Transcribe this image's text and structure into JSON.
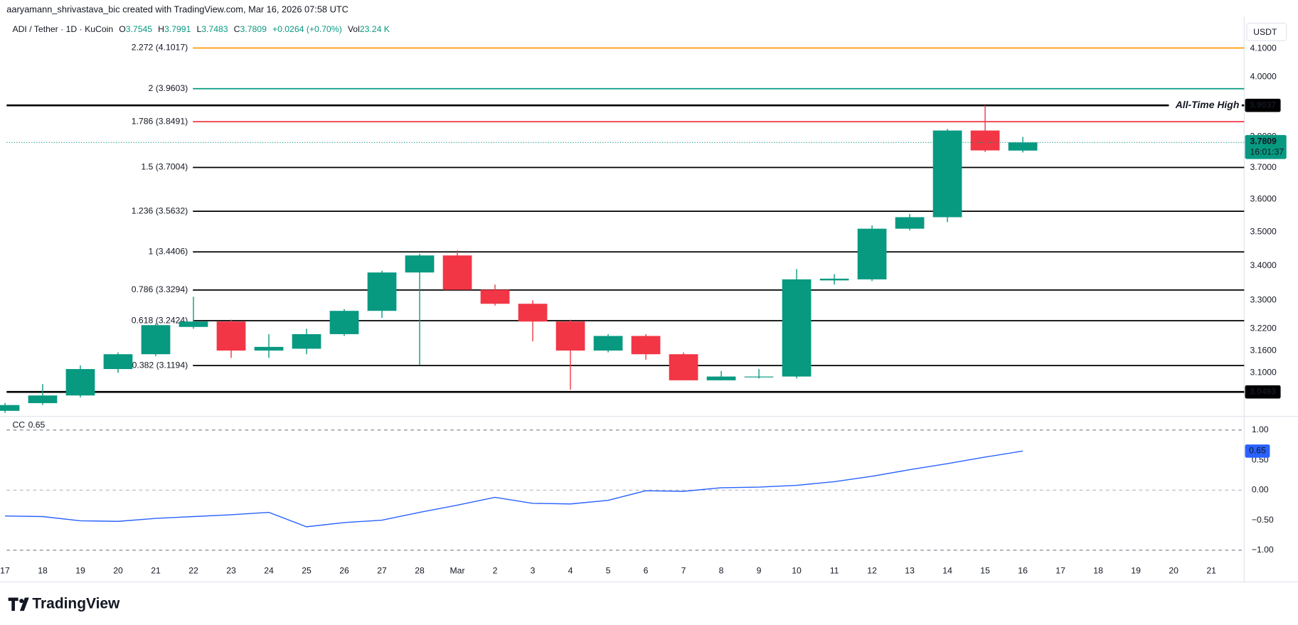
{
  "header": {
    "attribution": "aaryamann_shrivastava_bic created with TradingView.com, Mar 16, 2026 07:58 UTC"
  },
  "legend": {
    "symbol": "ADI / Tether · 1D · KuCoin",
    "open_label": "O",
    "open": 3.7545,
    "high_label": "H",
    "high": 3.7991,
    "low_label": "L",
    "low": 3.7483,
    "close_label": "C",
    "close": 3.7809,
    "change": "+0.0264 (+0.70%)",
    "volume_label": "Vol",
    "volume": "23.24 K"
  },
  "footer": {
    "brand": "TradingView"
  },
  "chart_data": [
    {
      "type": "candlestick",
      "currency": "USDT",
      "log": true,
      "grid": false,
      "up_color": "#089981",
      "down_color": "#f23645",
      "categories": [
        "17",
        "18",
        "19",
        "20",
        "21",
        "22",
        "23",
        "24",
        "25",
        "26",
        "27",
        "28",
        "Mar",
        "2",
        "3",
        "4",
        "5",
        "6",
        "7",
        "8",
        "9",
        "10",
        "11",
        "12",
        "13",
        "14",
        "15",
        "16",
        "17",
        "18",
        "19",
        "20",
        "21"
      ],
      "open": [
        3.0,
        3.02,
        3.04,
        3.11,
        3.15,
        3.225,
        3.24,
        3.16,
        3.165,
        3.205,
        3.27,
        3.38,
        3.43,
        3.33,
        3.29,
        3.24,
        3.16,
        3.2,
        3.15,
        3.08,
        3.088,
        3.09,
        3.357,
        3.36,
        3.51,
        3.545,
        3.82,
        3.7545,
        null,
        null,
        null,
        null,
        null
      ],
      "high": [
        3.02,
        3.07,
        3.12,
        3.155,
        3.235,
        3.31,
        3.245,
        3.205,
        3.22,
        3.275,
        3.385,
        3.435,
        3.445,
        3.345,
        3.3,
        3.245,
        3.205,
        3.205,
        3.155,
        3.105,
        3.11,
        3.39,
        3.375,
        3.52,
        3.555,
        3.825,
        3.9037,
        3.7991,
        null,
        null,
        null,
        null,
        null
      ],
      "low": [
        2.995,
        3.015,
        3.035,
        3.1,
        3.145,
        3.22,
        3.14,
        3.14,
        3.15,
        3.2,
        3.25,
        3.12,
        3.33,
        3.285,
        3.185,
        3.055,
        3.155,
        3.135,
        3.08,
        3.08,
        3.085,
        3.085,
        3.345,
        3.355,
        3.505,
        3.53,
        3.75,
        3.7483,
        null,
        null,
        null,
        null,
        null
      ],
      "close": [
        3.015,
        3.04,
        3.11,
        3.15,
        3.23,
        3.24,
        3.16,
        3.17,
        3.205,
        3.27,
        3.38,
        3.43,
        3.33,
        3.29,
        3.24,
        3.16,
        3.2,
        3.15,
        3.08,
        3.09,
        3.09,
        3.36,
        3.362,
        3.51,
        3.545,
        3.82,
        3.755,
        3.7809,
        null,
        null,
        null,
        null,
        null
      ],
      "countdown": "16:01:37",
      "ylim": [
        2.99,
        4.19
      ],
      "yticks": [
        {
          "value": 4.1,
          "label": "4.1000"
        },
        {
          "value": 4.0,
          "label": "4.0000"
        },
        {
          "value": 3.8,
          "label": "3.8000"
        },
        {
          "value": 3.7,
          "label": "3.7000"
        },
        {
          "value": 3.6,
          "label": "3.6000"
        },
        {
          "value": 3.5,
          "label": "3.5000"
        },
        {
          "value": 3.4,
          "label": "3.4000"
        },
        {
          "value": 3.3,
          "label": "3.3000"
        },
        {
          "value": 3.22,
          "label": "3.2200"
        },
        {
          "value": 3.16,
          "label": "3.1600"
        },
        {
          "value": 3.1,
          "label": "3.1000"
        }
      ],
      "levels": [
        {
          "label": "2.272 (4.1017)",
          "value": 4.1017,
          "color": "#ff9800"
        },
        {
          "label": "2 (3.9603)",
          "value": 3.9603,
          "color": "#089981"
        },
        {
          "label": "1.786 (3.8491)",
          "value": 3.8491,
          "color": "#f23645"
        },
        {
          "label": "1.5 (3.7004)",
          "value": 3.7004,
          "color": "#000000"
        },
        {
          "label": "1.236 (3.5632)",
          "value": 3.5632,
          "color": "#000000"
        },
        {
          "label": "1 (3.4406)",
          "value": 3.4406,
          "color": "#000000"
        },
        {
          "label": "0.786 (3.3294)",
          "value": 3.3294,
          "color": "#000000"
        },
        {
          "label": "0.618 (3.2424)",
          "value": 3.2424,
          "color": "#000000"
        },
        {
          "label": "0.382 (3.1194)",
          "value": 3.1194,
          "color": "#000000"
        }
      ],
      "extremes": [
        {
          "label": "All-Time High",
          "value": 3.9037
        },
        {
          "value": 3.0493
        }
      ]
    },
    {
      "type": "line",
      "title": "CC",
      "color": "#2962ff",
      "values": [
        -0.43,
        -0.44,
        -0.51,
        -0.52,
        -0.47,
        -0.44,
        -0.41,
        -0.37,
        -0.61,
        -0.54,
        -0.5,
        -0.37,
        -0.25,
        -0.12,
        -0.22,
        -0.23,
        -0.17,
        -0.01,
        -0.02,
        0.04,
        0.05,
        0.08,
        0.14,
        0.23,
        0.34,
        0.44,
        0.55,
        0.65,
        null,
        null,
        null,
        null,
        null
      ],
      "ylim": [
        -1.1,
        1.2
      ],
      "yticks": [
        {
          "value": 1,
          "label": "1.00"
        },
        {
          "value": 0.5,
          "label": "0.50"
        },
        {
          "value": 0,
          "label": "0.00"
        },
        {
          "value": -0.5,
          "label": "−0.50"
        },
        {
          "value": -1,
          "label": "−1.00"
        }
      ],
      "hlines": [
        {
          "value": 1,
          "color": "#787b86"
        },
        {
          "value": 0,
          "color": "#b2b5be"
        },
        {
          "value": -1,
          "color": "#787b86"
        }
      ]
    }
  ]
}
